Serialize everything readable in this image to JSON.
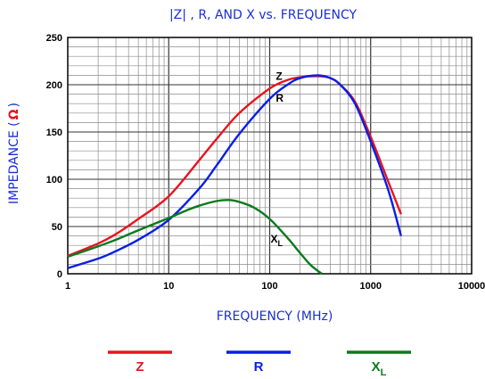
{
  "chart_data": {
    "type": "line",
    "title": "|Z| , R, AND X vs. FREQUENCY",
    "xlabel": "FREQUENCY (MHz)",
    "ylabel": "IMPEDANCE (",
    "ylabel_symbol": "Ω",
    "ylabel_end": ")",
    "x_scale": "log",
    "xlim": [
      1,
      10000
    ],
    "ylim": [
      0,
      250
    ],
    "grid": true,
    "x_tick_labels": [
      "1",
      "10",
      "100",
      "1000",
      "10000"
    ],
    "y_tick_labels": [
      "0",
      "50",
      "100",
      "150",
      "200",
      "250"
    ],
    "series": [
      {
        "name": "Z",
        "color": "#e8141e",
        "x": [
          1,
          2,
          3,
          5,
          10,
          20,
          30,
          50,
          100,
          150,
          200,
          300,
          400,
          500,
          700,
          1000,
          1500,
          2000
        ],
        "y": [
          19,
          32,
          42,
          58,
          82,
          120,
          143,
          170,
          196,
          205,
          208,
          209,
          207,
          200,
          182,
          145,
          97,
          63
        ]
      },
      {
        "name": "R",
        "color": "#0a1ee6",
        "x": [
          1,
          2,
          3,
          5,
          10,
          20,
          30,
          50,
          100,
          150,
          200,
          300,
          400,
          500,
          700,
          1000,
          1500,
          2000
        ],
        "y": [
          6,
          16,
          24,
          36,
          57,
          90,
          115,
          148,
          185,
          200,
          207,
          210,
          207,
          200,
          180,
          140,
          88,
          40
        ]
      },
      {
        "name": "X",
        "name_sub": "L",
        "color": "#0a7a1e",
        "x": [
          1,
          2,
          3,
          5,
          10,
          15,
          20,
          30,
          40,
          50,
          70,
          100,
          150,
          200,
          250,
          300,
          330
        ],
        "y": [
          18,
          29,
          36,
          46,
          59,
          67,
          72,
          77,
          78,
          76,
          70,
          58,
          38,
          22,
          10,
          3,
          0
        ]
      }
    ],
    "curve_labels": [
      {
        "text": "Z",
        "sub": "",
        "x": 115,
        "y": 209
      },
      {
        "text": "R",
        "sub": "",
        "x": 115,
        "y": 186
      },
      {
        "text": "X",
        "sub": "L",
        "x": 102,
        "y": 37
      }
    ],
    "legend": {
      "placement": "bottom",
      "items": [
        {
          "label": "Z",
          "sub": "",
          "color": "#e8141e"
        },
        {
          "label": "R",
          "sub": "",
          "color": "#0a1ee6"
        },
        {
          "label": "X",
          "sub": "L",
          "color": "#0a7a1e"
        }
      ]
    }
  }
}
